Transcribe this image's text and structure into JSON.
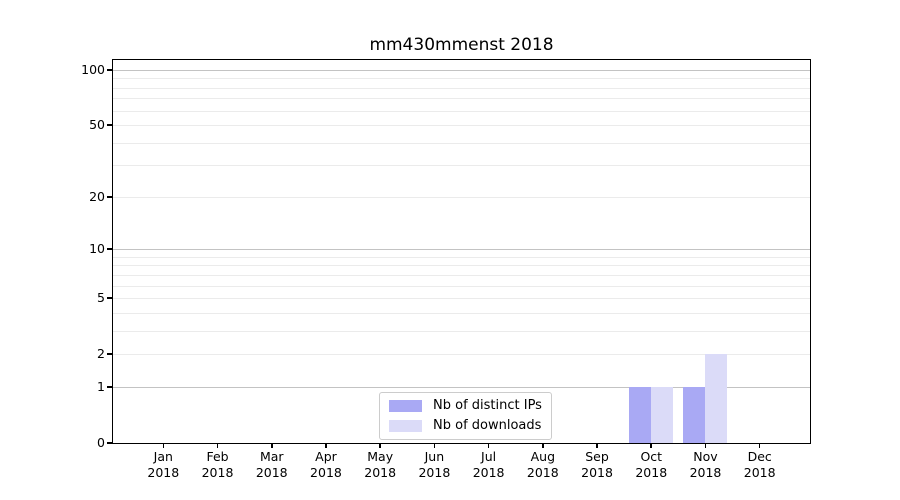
{
  "chart_data": {
    "type": "bar",
    "title": "mm430mmenst 2018",
    "categories": [
      "Jan 2018",
      "Feb 2018",
      "Mar 2018",
      "Apr 2018",
      "May 2018",
      "Jun 2018",
      "Jul 2018",
      "Aug 2018",
      "Sep 2018",
      "Oct 2018",
      "Nov 2018",
      "Dec 2018"
    ],
    "series": [
      {
        "name": "Nb of distinct IPs",
        "color": "#a9a9f4",
        "values": [
          0,
          0,
          0,
          0,
          0,
          0,
          0,
          0,
          0,
          1,
          1,
          0
        ]
      },
      {
        "name": "Nb of downloads",
        "color": "#dbdbf8",
        "values": [
          0,
          0,
          0,
          0,
          0,
          0,
          0,
          0,
          0,
          1,
          2,
          0
        ]
      }
    ],
    "xlabel": "",
    "ylabel": "",
    "y_scale": "log10(1+x)",
    "ylim": [
      0,
      113
    ],
    "y_ticks": [
      0,
      1,
      2,
      5,
      10,
      20,
      50,
      100
    ],
    "major_gridlines": [
      1,
      10,
      100
    ],
    "minor_gridlines": [
      2,
      3,
      4,
      5,
      6,
      7,
      8,
      9,
      20,
      30,
      40,
      50,
      60,
      70,
      80,
      90
    ],
    "grid": true,
    "legend": {
      "position": "lower center",
      "items": [
        "Nb of distinct IPs",
        "Nb of downloads"
      ]
    },
    "colors": {
      "bar_distinct_ips": "#a9a9f4",
      "bar_downloads": "#dbdbf8",
      "major_grid": "#c3c3c3",
      "minor_grid": "#ebebeb",
      "spine": "#000000",
      "background": "#ffffff"
    }
  }
}
